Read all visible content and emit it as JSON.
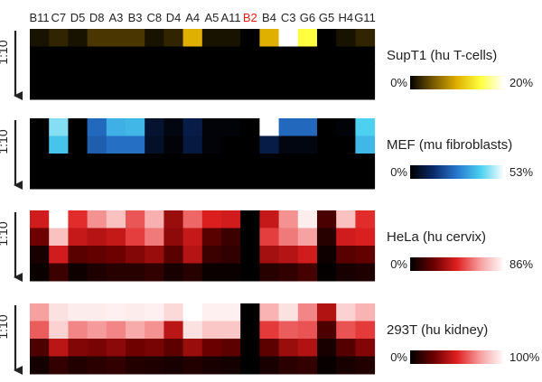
{
  "chart_data": {
    "type": "heatmap",
    "columns": [
      {
        "label": "B11",
        "highlight": false
      },
      {
        "label": "C7",
        "highlight": false
      },
      {
        "label": "D5",
        "highlight": false
      },
      {
        "label": "D8",
        "highlight": false
      },
      {
        "label": "A3",
        "highlight": false
      },
      {
        "label": "B3",
        "highlight": false
      },
      {
        "label": "C8",
        "highlight": false
      },
      {
        "label": "D4",
        "highlight": false
      },
      {
        "label": "A4",
        "highlight": false
      },
      {
        "label": "A5",
        "highlight": false
      },
      {
        "label": "A11",
        "highlight": false
      },
      {
        "label": "B2",
        "highlight": true
      },
      {
        "label": "B4",
        "highlight": false
      },
      {
        "label": "C3",
        "highlight": false
      },
      {
        "label": "G6",
        "highlight": false
      },
      {
        "label": "G5",
        "highlight": false
      },
      {
        "label": "H4",
        "highlight": false
      },
      {
        "label": "G11",
        "highlight": false
      }
    ],
    "highlight_color": "#e0201a",
    "dilution_label": "1:10",
    "panels": [
      {
        "cell_line": "SupT1 (hu T-cells)",
        "scale_min_label": "0%",
        "scale_max_label": "20%",
        "scale_max": 20,
        "colormap": [
          "#000000",
          "#7a5a00",
          "#e0b000",
          "#ffff40",
          "#ffffff"
        ],
        "values": [
          [
            1,
            2,
            1,
            3,
            3,
            3,
            1,
            2,
            10,
            1,
            1,
            0,
            10,
            20,
            15,
            0,
            1,
            2
          ],
          [
            0,
            0,
            0,
            0,
            0,
            0,
            0,
            0,
            0,
            0,
            0,
            0,
            0,
            0,
            0,
            0,
            0,
            0
          ],
          [
            0,
            0,
            0,
            0,
            0,
            0,
            0,
            0,
            0,
            0,
            0,
            0,
            0,
            0,
            0,
            0,
            0,
            0
          ],
          [
            0,
            0,
            0,
            0,
            0,
            0,
            0,
            0,
            0,
            0,
            0,
            0,
            0,
            0,
            0,
            0,
            0,
            0
          ]
        ]
      },
      {
        "cell_line": "MEF (mu fibroblasts)",
        "scale_min_label": "0%",
        "scale_max_label": "53%",
        "scale_max": 53,
        "colormap": [
          "#000000",
          "#0a2a6a",
          "#2878d0",
          "#4ad0f0",
          "#ffffff"
        ],
        "values": [
          [
            0,
            44,
            0,
            24,
            35,
            36,
            6,
            2,
            9,
            1,
            1,
            0,
            53,
            24,
            24,
            0,
            1,
            40
          ],
          [
            0,
            38,
            0,
            22,
            25,
            25,
            5,
            1,
            8,
            1,
            0,
            0,
            9,
            2,
            2,
            0,
            0,
            36
          ],
          [
            0,
            0,
            0,
            0,
            0,
            0,
            0,
            0,
            0,
            0,
            0,
            0,
            0,
            0,
            0,
            0,
            0,
            0
          ],
          [
            0,
            0,
            0,
            0,
            0,
            0,
            0,
            0,
            0,
            0,
            0,
            0,
            0,
            0,
            0,
            0,
            0,
            0
          ]
        ]
      },
      {
        "cell_line": "HeLa (hu cervix)",
        "scale_min_label": "0%",
        "scale_max_label": "86%",
        "scale_max": 86,
        "colormap": [
          "#000000",
          "#6a0000",
          "#e02020",
          "#f7a0a0",
          "#ffffff"
        ],
        "values": [
          [
            40,
            86,
            45,
            62,
            72,
            52,
            68,
            30,
            55,
            42,
            40,
            0,
            38,
            62,
            82,
            15,
            72,
            45
          ],
          [
            22,
            72,
            38,
            35,
            38,
            48,
            58,
            28,
            38,
            18,
            12,
            0,
            48,
            58,
            65,
            8,
            40,
            42
          ],
          [
            5,
            40,
            18,
            20,
            22,
            26,
            30,
            18,
            35,
            12,
            10,
            0,
            32,
            35,
            40,
            3,
            18,
            20
          ],
          [
            2,
            12,
            3,
            6,
            8,
            8,
            10,
            5,
            8,
            2,
            2,
            0,
            8,
            10,
            14,
            1,
            5,
            6
          ]
        ]
      },
      {
        "cell_line": "293T (hu kidney)",
        "scale_min_label": "0%",
        "scale_max_label": "100%",
        "scale_max": 100,
        "colormap": [
          "#000000",
          "#6a0000",
          "#e02020",
          "#f7a0a0",
          "#ffffff"
        ],
        "values": [
          [
            75,
            92,
            95,
            95,
            96,
            95,
            96,
            90,
            100,
            96,
            96,
            0,
            80,
            92,
            70,
            40,
            88,
            80
          ],
          [
            62,
            88,
            70,
            74,
            70,
            78,
            72,
            42,
            92,
            85,
            85,
            0,
            55,
            62,
            60,
            18,
            60,
            55
          ],
          [
            18,
            42,
            30,
            28,
            32,
            26,
            28,
            22,
            35,
            25,
            22,
            0,
            22,
            35,
            40,
            6,
            20,
            30
          ],
          [
            5,
            12,
            8,
            10,
            12,
            8,
            7,
            6,
            8,
            6,
            5,
            0,
            6,
            10,
            12,
            2,
            6,
            8
          ]
        ]
      }
    ]
  }
}
